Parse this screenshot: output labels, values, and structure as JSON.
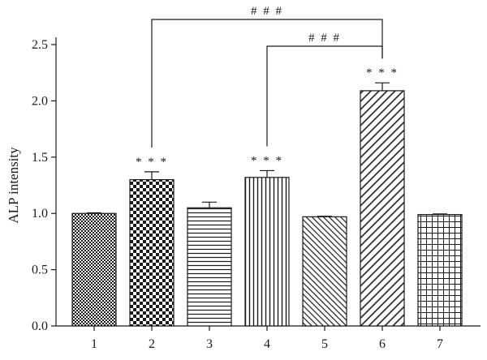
{
  "chart_data": {
    "type": "bar",
    "ylabel": "ALP intensity",
    "xlabel": "",
    "ylim": [
      0,
      2.5
    ],
    "yticks": [
      "0.0",
      "0.5",
      "1.0",
      "1.5",
      "2.0",
      "2.5"
    ],
    "categories": [
      "1",
      "2",
      "3",
      "4",
      "5",
      "6",
      "7"
    ],
    "values": [
      1.0,
      1.3,
      1.05,
      1.32,
      0.97,
      2.09,
      0.99
    ],
    "errors": [
      0.005,
      0.07,
      0.05,
      0.06,
      0.005,
      0.07,
      0.005
    ],
    "patterns": [
      "fine-checker",
      "checker",
      "horizontal",
      "vertical",
      "diagonal-fine",
      "diagonal",
      "grid"
    ],
    "bar_annotations": [
      "",
      "***",
      "",
      "***",
      "",
      "***",
      ""
    ],
    "brackets": [
      {
        "from": "2",
        "to": "6",
        "label": "###"
      },
      {
        "from": "4",
        "to": "6",
        "label": "###"
      }
    ]
  }
}
